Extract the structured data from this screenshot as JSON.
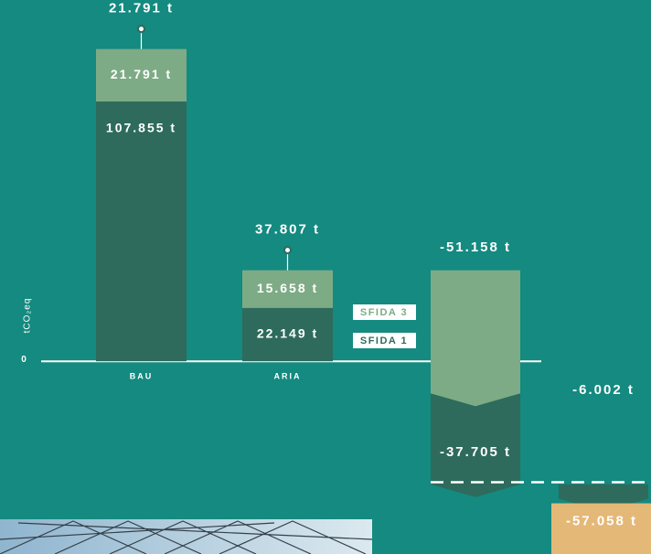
{
  "chart_data": {
    "type": "waterfall",
    "y_label": "tCO₂eq",
    "ylim": [
      -80,
      150
    ],
    "yticks": [
      0
    ],
    "categories": [
      "BAU",
      "ARIA"
    ],
    "series": [
      {
        "name": "SFIDA 1",
        "color": "#2e6b5c",
        "values": [
          107.855,
          22.149
        ],
        "value_labels": [
          "107.855 t",
          "22.149 t"
        ]
      },
      {
        "name": "SFIDA 3",
        "color": "#7dab85",
        "values": [
          21.791,
          15.658
        ],
        "value_labels": [
          "21.791 t",
          "15.658 t"
        ]
      }
    ],
    "pin_labels": [
      "21.791 t",
      "37.807 t"
    ],
    "reductions": [
      {
        "value": -51.158,
        "label": "-51.158 t",
        "color": "#7dab85"
      },
      {
        "value": -37.705,
        "label": "-37.705 t",
        "color": "#2e6b5c"
      },
      {
        "value": -6.002,
        "label": "-6.002 t",
        "color": "#2e6b5c"
      }
    ],
    "final": {
      "value": -57.058,
      "label": "-57.058 t",
      "color": "#e4b877"
    }
  }
}
